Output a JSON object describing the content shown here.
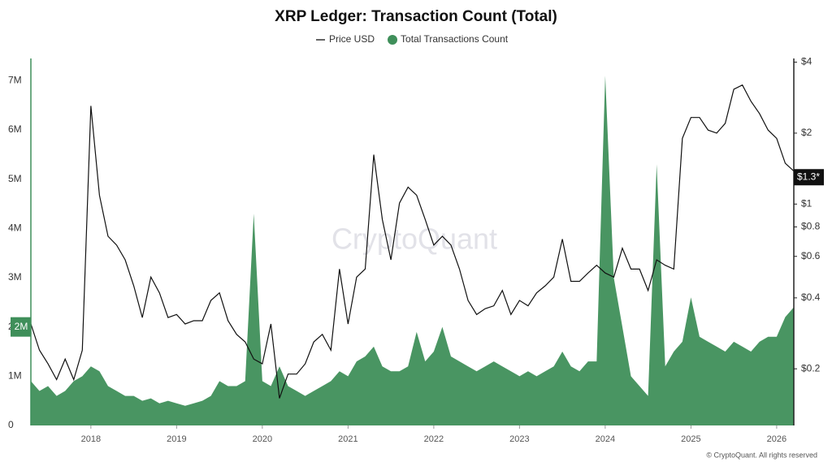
{
  "chart_data": {
    "type": "line",
    "title": "XRP Ledger: Transaction Count (Total)",
    "watermark": "CryptoQuant",
    "footer": "© CryptoQuant. All rights reserved",
    "legend": "top",
    "x": [
      2017.3,
      2017.4,
      2017.5,
      2017.6,
      2017.7,
      2017.8,
      2017.9,
      2018.0,
      2018.1,
      2018.2,
      2018.3,
      2018.4,
      2018.5,
      2018.6,
      2018.7,
      2018.8,
      2018.9,
      2019.0,
      2019.1,
      2019.2,
      2019.3,
      2019.4,
      2019.5,
      2019.6,
      2019.7,
      2019.8,
      2019.9,
      2020.0,
      2020.1,
      2020.2,
      2020.3,
      2020.4,
      2020.5,
      2020.6,
      2020.7,
      2020.8,
      2020.9,
      2021.0,
      2021.1,
      2021.2,
      2021.3,
      2021.4,
      2021.5,
      2021.6,
      2021.7,
      2021.8,
      2021.9,
      2022.0,
      2022.1,
      2022.2,
      2022.3,
      2022.4,
      2022.5,
      2022.6,
      2022.7,
      2022.8,
      2022.9,
      2023.0,
      2023.1,
      2023.2,
      2023.3,
      2023.4,
      2023.5,
      2023.6,
      2023.7,
      2023.8,
      2023.9,
      2024.0,
      2024.1,
      2024.2,
      2024.3,
      2024.4,
      2024.5,
      2024.6,
      2024.7,
      2024.8,
      2024.9,
      2025.0,
      2025.1,
      2025.2,
      2025.3,
      2025.4,
      2025.5,
      2025.6,
      2025.7,
      2025.8,
      2025.9,
      2026.0,
      2026.1,
      2026.2
    ],
    "series": [
      {
        "name": "Price USD",
        "type": "line",
        "axis": "y2",
        "color": "#111111",
        "values": [
          0.31,
          0.24,
          0.21,
          0.18,
          0.22,
          0.18,
          0.24,
          2.61,
          1.09,
          0.73,
          0.67,
          0.58,
          0.45,
          0.33,
          0.49,
          0.42,
          0.33,
          0.34,
          0.31,
          0.32,
          0.32,
          0.39,
          0.42,
          0.32,
          0.28,
          0.26,
          0.22,
          0.21,
          0.31,
          0.15,
          0.19,
          0.19,
          0.21,
          0.26,
          0.28,
          0.24,
          0.53,
          0.31,
          0.49,
          0.53,
          1.62,
          0.86,
          0.58,
          1.01,
          1.18,
          1.09,
          0.86,
          0.67,
          0.73,
          0.67,
          0.53,
          0.39,
          0.34,
          0.36,
          0.37,
          0.43,
          0.34,
          0.39,
          0.37,
          0.42,
          0.45,
          0.49,
          0.71,
          0.47,
          0.47,
          0.51,
          0.55,
          0.51,
          0.49,
          0.65,
          0.53,
          0.53,
          0.43,
          0.58,
          0.55,
          0.53,
          1.9,
          2.33,
          2.33,
          2.06,
          2.0,
          2.2,
          3.07,
          3.2,
          2.73,
          2.42,
          2.06,
          1.9,
          1.49,
          1.38
        ]
      },
      {
        "name": "Total Transactions Count",
        "type": "area",
        "color": "#3f8f5a",
        "values": [
          900000,
          700000,
          800000,
          600000,
          700000,
          900000,
          1000000,
          1200000,
          1100000,
          800000,
          700000,
          600000,
          600000,
          500000,
          550000,
          450000,
          500000,
          450000,
          400000,
          450000,
          500000,
          600000,
          900000,
          800000,
          800000,
          900000,
          4300000,
          900000,
          800000,
          1200000,
          800000,
          700000,
          600000,
          700000,
          800000,
          900000,
          1100000,
          1000000,
          1300000,
          1400000,
          1600000,
          1200000,
          1100000,
          1100000,
          1200000,
          1900000,
          1300000,
          1500000,
          2000000,
          1400000,
          1300000,
          1200000,
          1100000,
          1200000,
          1300000,
          1200000,
          1100000,
          1000000,
          1100000,
          1000000,
          1100000,
          1200000,
          1500000,
          1200000,
          1100000,
          1300000,
          1300000,
          7100000,
          3000000,
          2000000,
          1000000,
          800000,
          600000,
          5300000,
          1200000,
          1500000,
          1700000,
          2600000,
          1800000,
          1700000,
          1600000,
          1500000,
          1700000,
          1600000,
          1500000,
          1700000,
          1800000,
          1800000,
          2200000,
          2400000
        ]
      }
    ],
    "xlim": [
      2017.3,
      2026.2
    ],
    "xticks": [
      2018,
      2019,
      2020,
      2021,
      2022,
      2023,
      2024,
      2025,
      2026
    ],
    "ylim": [
      0,
      7400000
    ],
    "yticks": [
      {
        "value": 0,
        "label": "0"
      },
      {
        "value": 1000000,
        "label": "1M"
      },
      {
        "value": 2000000,
        "label": "2M"
      },
      {
        "value": 3000000,
        "label": "3M"
      },
      {
        "value": 4000000,
        "label": "4M"
      },
      {
        "value": 5000000,
        "label": "5M"
      },
      {
        "value": 6000000,
        "label": "6M"
      },
      {
        "value": 7000000,
        "label": "7M"
      }
    ],
    "y2lim": [
      0.115,
      4.05
    ],
    "y2log": true,
    "y2ticks": [
      {
        "value": 0.2,
        "label": "$0.2"
      },
      {
        "value": 0.4,
        "label": "$0.4"
      },
      {
        "value": 0.6,
        "label": "$0.6"
      },
      {
        "value": 0.8,
        "label": "$0.8"
      },
      {
        "value": 1,
        "label": "$1"
      },
      {
        "value": 2,
        "label": "$2"
      },
      {
        "value": 4,
        "label": "$4"
      }
    ],
    "price_marker": {
      "value": 1.3,
      "label": "$1.3*"
    },
    "count_marker": {
      "value": 2000000,
      "label": "2M"
    }
  }
}
